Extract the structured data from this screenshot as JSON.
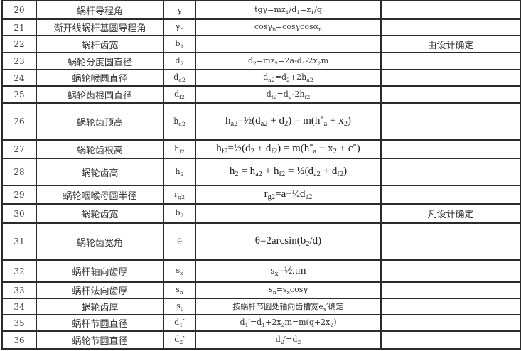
{
  "rows": [
    {
      "num": "20",
      "name": "蜗杆导程角",
      "symbol": "γ",
      "formula": "tgγ=mz_{1}/d_{1}=z_{1}/q",
      "note": ""
    },
    {
      "num": "21",
      "name": "渐开线蜗杆基圆导程角",
      "symbol": "γ_{b}",
      "formula": "cosγ_{b}=cosγcosα_{n}",
      "note": ""
    },
    {
      "num": "22",
      "name": "蜗杆齿宽",
      "symbol": "b_{1}",
      "formula": "",
      "note": "由设计确定"
    },
    {
      "num": "23",
      "name": "蜗轮分度圆直径",
      "symbol": "d_{2}",
      "formula": "d_{2}=mz_{2}=2a-d_{1}-2x_{2}m",
      "note": ""
    },
    {
      "num": "24",
      "name": "蜗轮喉圆直径",
      "symbol": "d_{a2}",
      "formula": "d_{a2}=d_{2}+2h_{a2}",
      "note": ""
    },
    {
      "num": "25",
      "name": "蜗轮齿根圆直径",
      "symbol": "d_{f2}",
      "formula": "d_{f2}=d_{2}-2h_{f2}",
      "note": ""
    },
    {
      "num": "26",
      "name": "蜗轮齿顶高",
      "symbol": "h_{a2}",
      "formula": "h_{a2}=½(d_{a2} + d_{2}) = m(h^{*}_{a} + x_{2})",
      "note": "",
      "big": true
    },
    {
      "num": "27",
      "name": "蜗轮齿根高",
      "symbol": "h_{f2}",
      "formula": "h_{f2}=½(d_{2} + d_{f2}) = m(h^{*}_{a} − x_{2} + c^{*})",
      "note": "",
      "big": true
    },
    {
      "num": "28",
      "name": "蜗轮齿高",
      "symbol": "h_{2}",
      "formula": "h_{2} = h_{a2} + h_{f2} = ½(d_{a2} + d_{f2})",
      "note": "",
      "big": true
    },
    {
      "num": "29",
      "name": "蜗轮咽喉母圆半径",
      "symbol": "r_{g2}",
      "formula": "r_{g2}=a−½d_{a2}",
      "note": "",
      "big": true
    },
    {
      "num": "30",
      "name": "蜗轮齿宽",
      "symbol": "b_{2}",
      "formula": "",
      "note": "凡设计确定"
    },
    {
      "num": "31",
      "name": "蜗轮齿宽角",
      "symbol": "θ",
      "formula": "θ=2arcsin(b_{2}/d)",
      "note": "",
      "big": true
    },
    {
      "num": "32",
      "name": "蜗杆轴向齿厚",
      "symbol": "s_{x}",
      "formula": "s_{x}=½πm",
      "note": "",
      "big": true
    },
    {
      "num": "33",
      "name": "蜗杆法向齿厚",
      "symbol": "s_{n}",
      "formula": "s_{n}=s_{x}cosγ",
      "note": ""
    },
    {
      "num": "34",
      "name": "蜗轮齿厚",
      "symbol": "s_{t}",
      "formula": "按蜗杆节圆处轴向齿槽宽e_{x}′确定",
      "note": ""
    },
    {
      "num": "35",
      "name": "蜗杆节圆直径",
      "symbol": "d_{1}′",
      "formula": "d_{1}′=d_{1}+2x_{2}m=m(q+2x_{2})",
      "note": ""
    },
    {
      "num": "36",
      "name": "蜗轮节圆直径",
      "symbol": "d_{2}′",
      "formula": "d_{2}′=d_{2}",
      "note": ""
    }
  ]
}
